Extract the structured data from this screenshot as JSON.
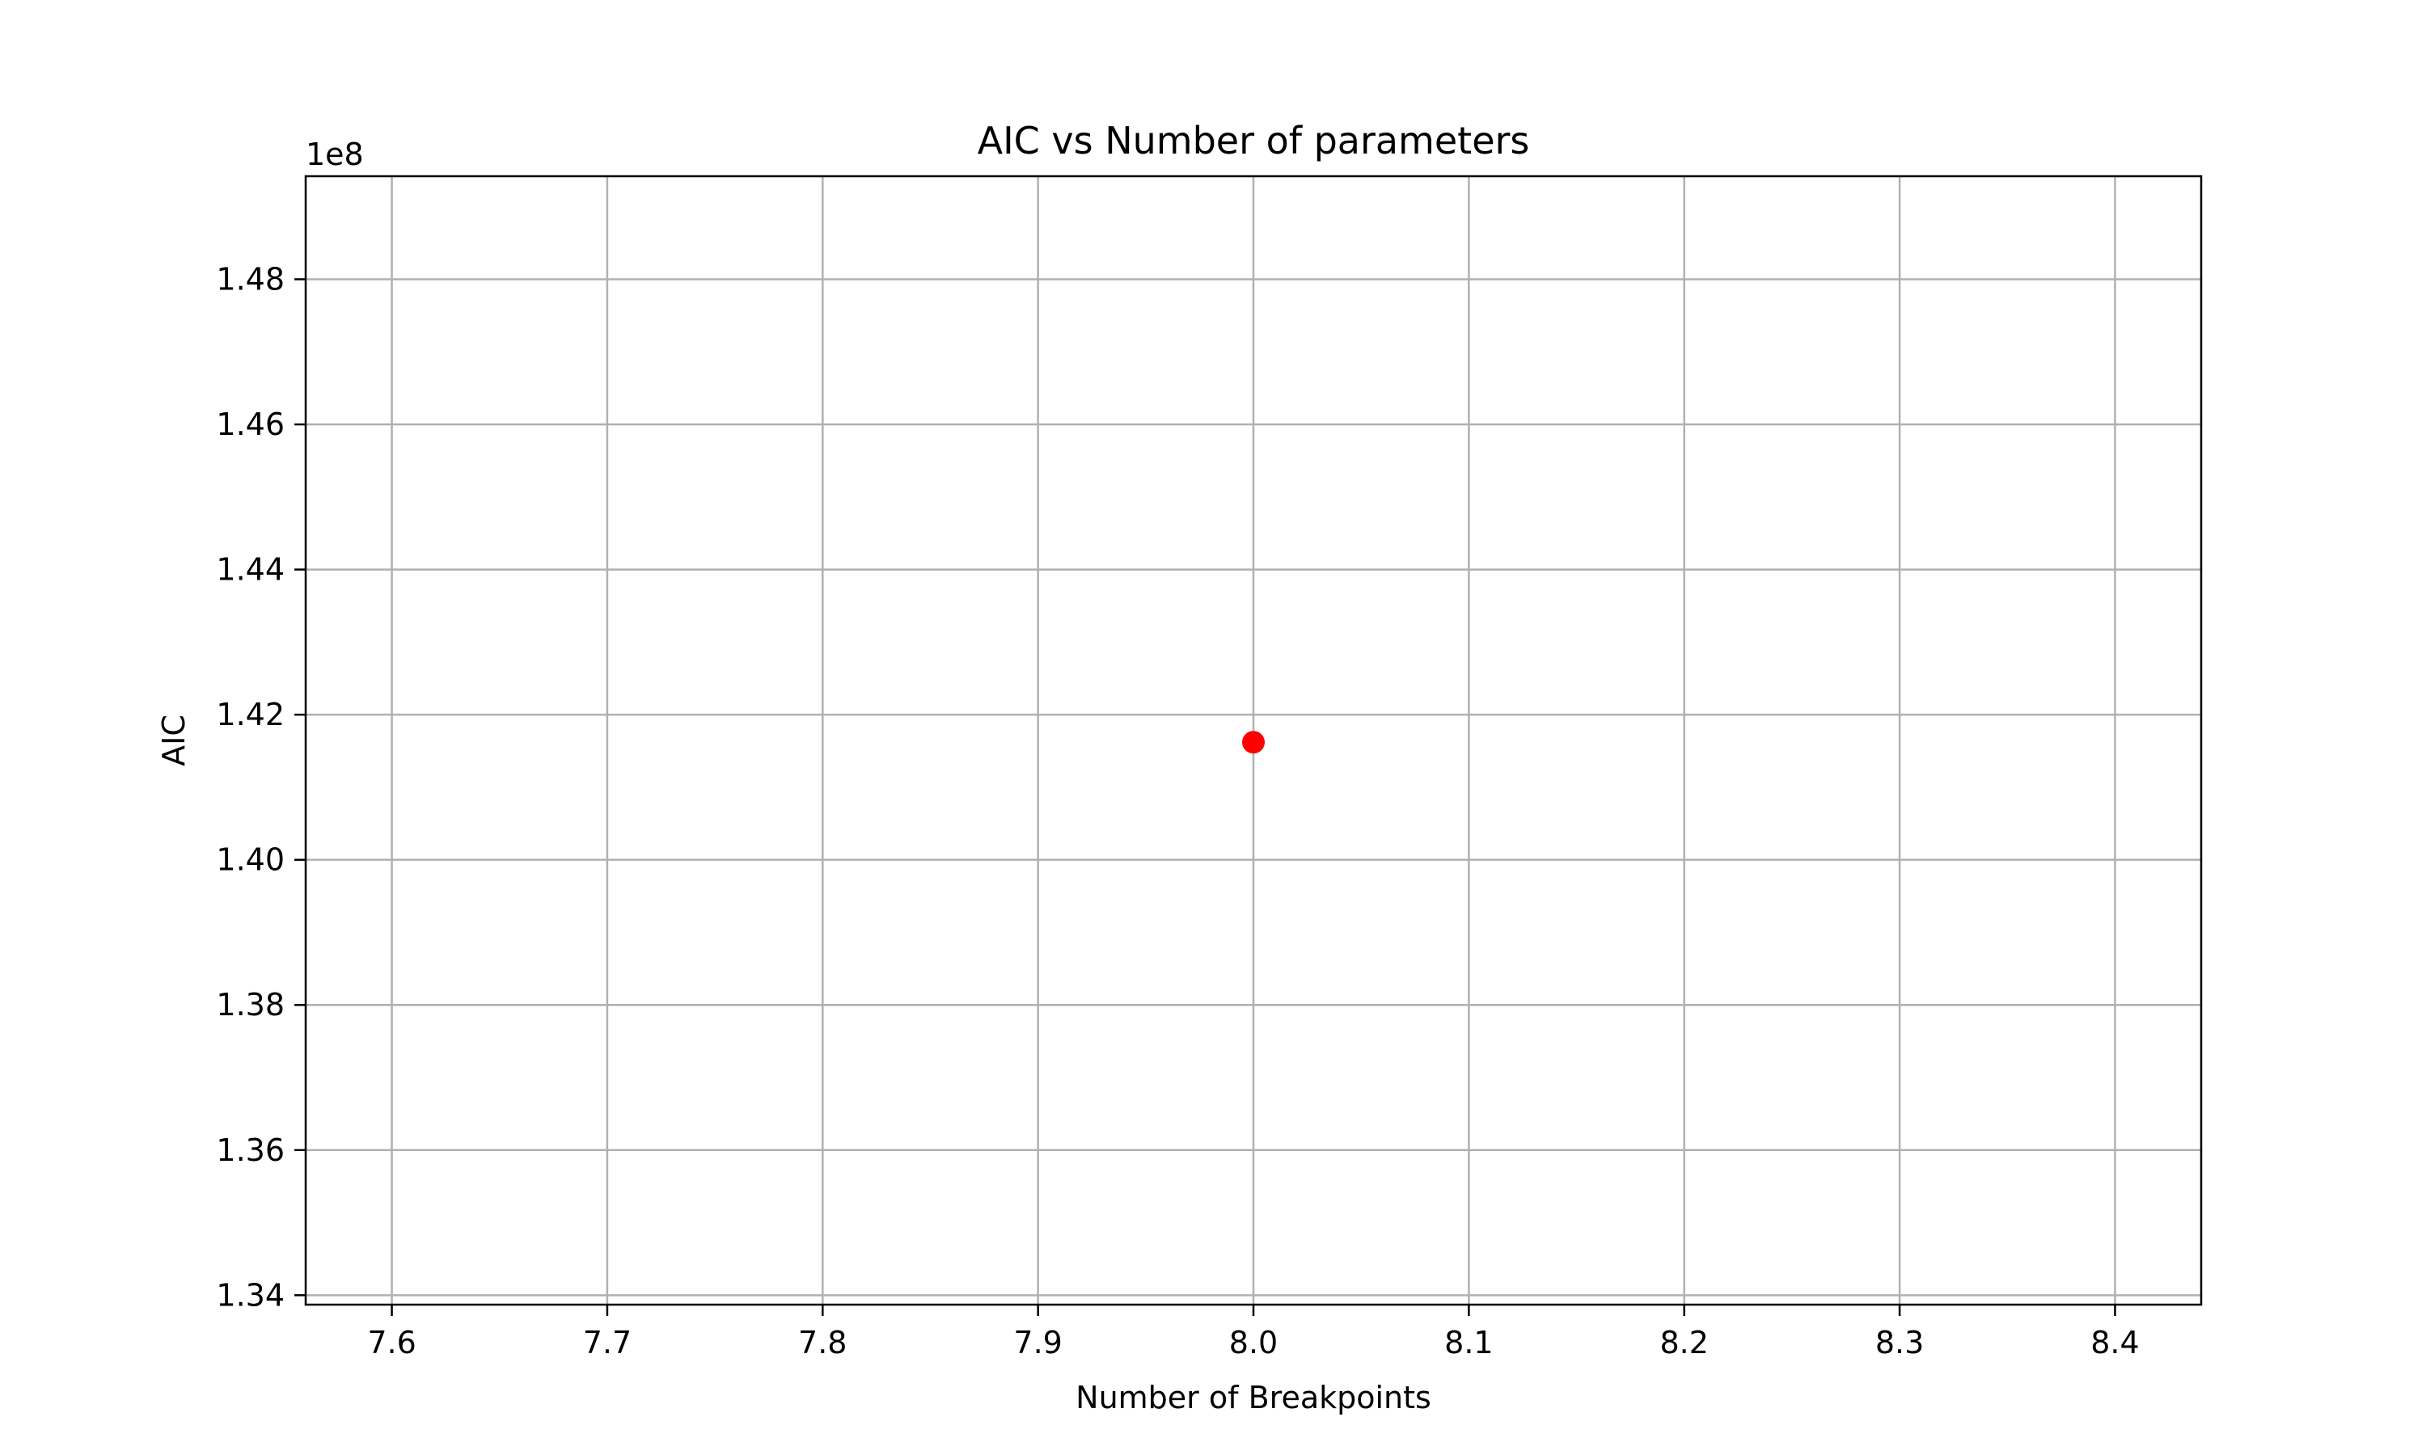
{
  "chart_data": {
    "type": "scatter",
    "title": "AIC vs Number of parameters",
    "xlabel": "Number of Breakpoints",
    "ylabel": "AIC",
    "y_offset_label": "1e8",
    "xlim": [
      7.56,
      8.44
    ],
    "ylim": [
      1.3387,
      1.4942
    ],
    "x_scale_factor": 1,
    "y_scale_factor": 100000000,
    "x_ticks": [
      7.6,
      7.7,
      7.8,
      7.9,
      8.0,
      8.1,
      8.2,
      8.3,
      8.4
    ],
    "x_tick_labels": [
      "7.6",
      "7.7",
      "7.8",
      "7.9",
      "8.0",
      "8.1",
      "8.2",
      "8.3",
      "8.4"
    ],
    "y_ticks": [
      1.34,
      1.36,
      1.38,
      1.4,
      1.42,
      1.44,
      1.46,
      1.48
    ],
    "y_tick_labels": [
      "1.34",
      "1.36",
      "1.38",
      "1.40",
      "1.42",
      "1.44",
      "1.46",
      "1.48"
    ],
    "grid": true,
    "series": [
      {
        "points": [
          {
            "x": 8.0,
            "y": 1.4162
          }
        ],
        "color": "#ff0000",
        "marker": "circle"
      }
    ]
  },
  "colors": {
    "grid": "#b0b0b0",
    "axes": "#000000",
    "background": "#ffffff"
  }
}
